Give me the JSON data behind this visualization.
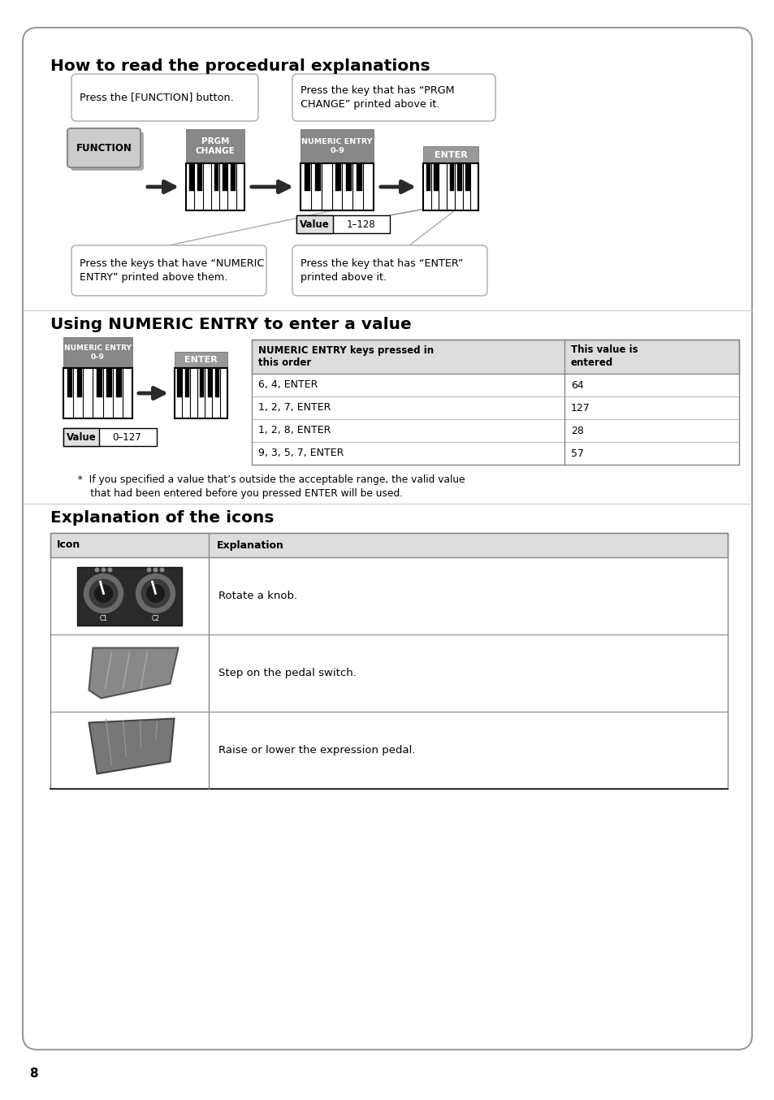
{
  "bg_color": "#ffffff",
  "card_border": "#aaaaaa",
  "section1_title": "How to read the procedural explanations",
  "section2_title": "Using NUMERIC ENTRY to enter a value",
  "section3_title": "Explanation of the icons",
  "bubble1_text": "Press the [FUNCTION] button.",
  "bubble2_text": "Press the key that has “PRGM\nCHANGE” printed above it.",
  "bubble3_text": "Press the keys that have “NUMERIC\nENTRY” printed above them.",
  "bubble4_text": "Press the key that has “ENTER”\nprinted above it.",
  "key_label1": "FUNCTION",
  "key_label2": "PRGM\nCHANGE",
  "key_label3": "NUMERIC ENTRY\n0–9",
  "key_label4": "ENTER",
  "value_label1": "Value",
  "value_range1": "1–128",
  "numeric_key_label1": "NUMERIC ENTRY\n0–9",
  "numeric_key_label2": "ENTER",
  "value_label2": "Value",
  "value_range2": "0–127",
  "table1_col1": "NUMERIC ENTRY keys pressed in\nthis order",
  "table1_col2": "This value is\nentered",
  "table1_rows": [
    [
      "6, 4, ENTER",
      "64"
    ],
    [
      "1, 2, 7, ENTER",
      "127"
    ],
    [
      "1, 2, 8, ENTER",
      "28"
    ],
    [
      "9, 3, 5, 7, ENTER",
      "57"
    ]
  ],
  "footnote_line1": "  *  If you specified a value that’s outside the acceptable range, the valid value",
  "footnote_line2": "      that had been entered before you pressed ENTER will be used.",
  "table2_col1": "Icon",
  "table2_col2": "Explanation",
  "table2_rows": [
    "Rotate a knob.",
    "Step on the pedal switch.",
    "Raise or lower the expression pedal."
  ],
  "page_number": "8"
}
